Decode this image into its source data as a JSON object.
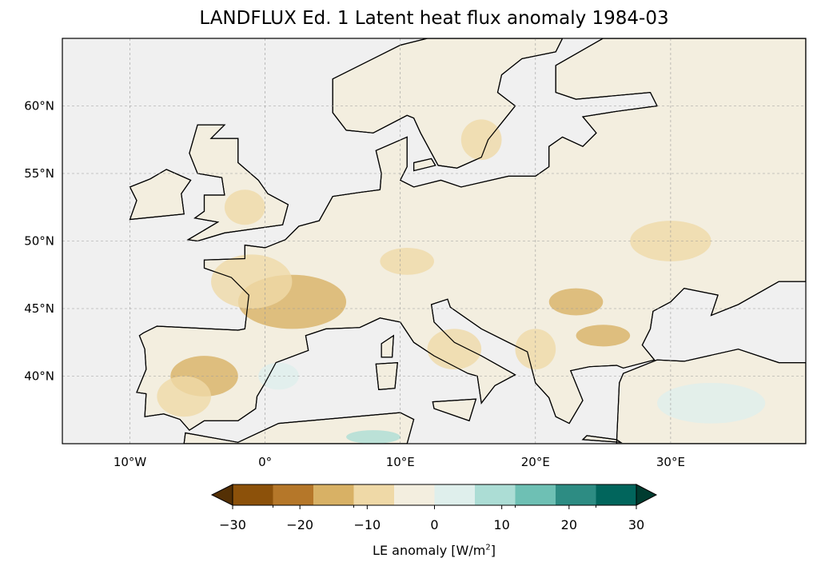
{
  "title": "LANDFLUX Ed. 1 Latent heat flux anomaly 1984-03",
  "map": {
    "extent_lon": [
      -15,
      40
    ],
    "extent_lat": [
      35,
      65
    ],
    "lon_ticks": [
      {
        "v": -10,
        "label": "10°W"
      },
      {
        "v": 0,
        "label": "0°"
      },
      {
        "v": 10,
        "label": "10°E"
      },
      {
        "v": 20,
        "label": "20°E"
      },
      {
        "v": 30,
        "label": "30°E"
      }
    ],
    "lat_ticks": [
      {
        "v": 60,
        "label": "60°N"
      },
      {
        "v": 55,
        "label": "55°N"
      },
      {
        "v": 50,
        "label": "50°N"
      },
      {
        "v": 45,
        "label": "45°N"
      },
      {
        "v": 40,
        "label": "40°N"
      }
    ],
    "ocean_color": "#f0f0f0",
    "land_color": "#f3eedf"
  },
  "colorbar": {
    "label": "LE anomaly [W/m²]",
    "label_base": "LE anomaly [W/m",
    "label_sup": "2",
    "label_end": "]",
    "bounds": [
      -30,
      30
    ],
    "ticks": [
      "−30",
      "−20",
      "−10",
      "0",
      "10",
      "20",
      "30"
    ],
    "colors": [
      "#543005",
      "#8c510a",
      "#b57729",
      "#d8b165",
      "#efd9a7",
      "#f3eedf",
      "#dfefec",
      "#acddd5",
      "#6ec0b4",
      "#2d8c83",
      "#01655c",
      "#003c30"
    ]
  }
}
